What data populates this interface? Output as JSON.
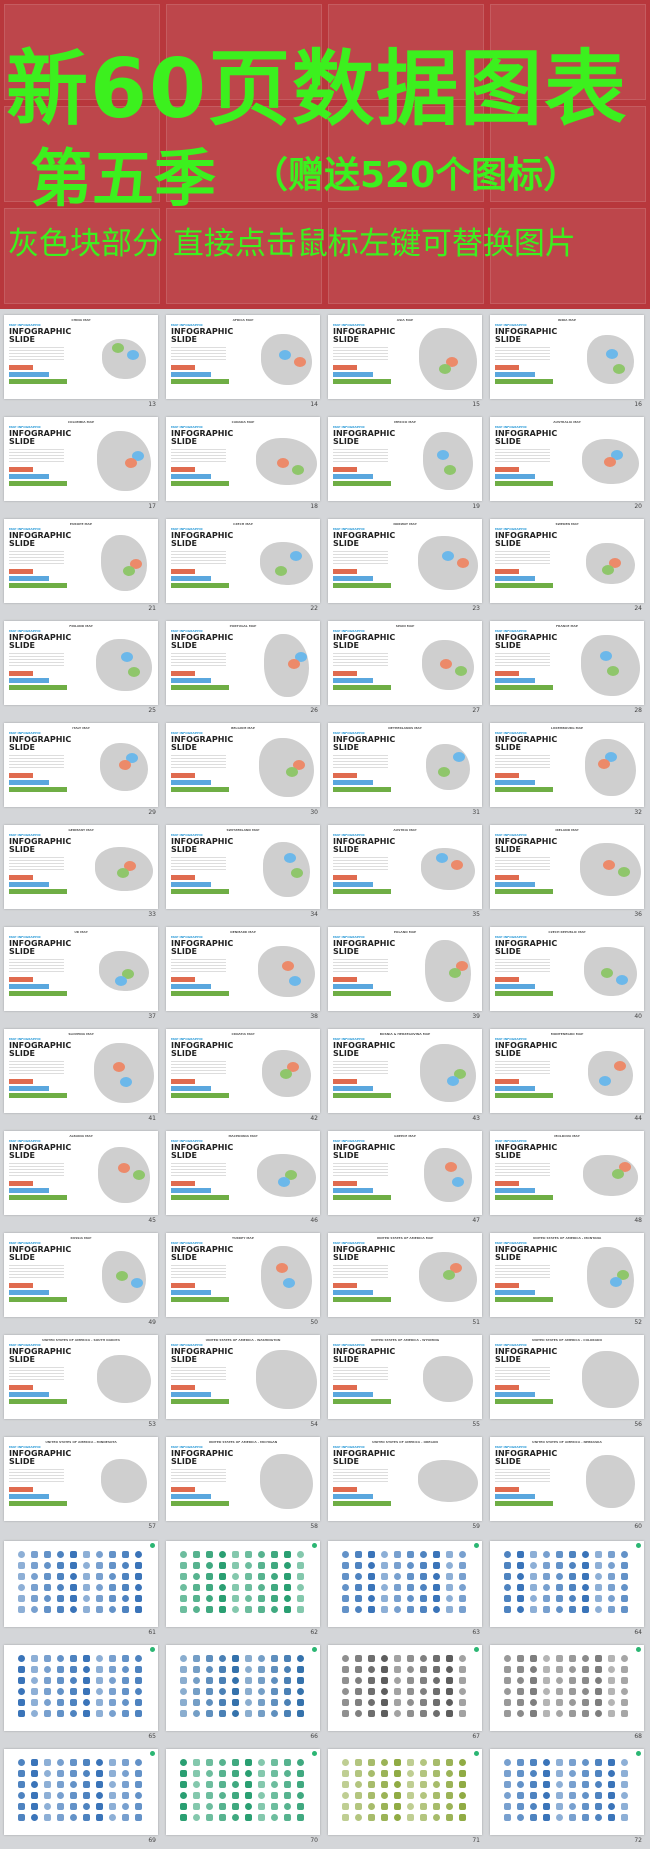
{
  "header": {
    "title": "新60页数据图表",
    "season": "第五季",
    "bonus": "（赠送520个图标）",
    "instruction": "灰色块部分 直接点击鼠标左键可替换图片"
  },
  "slide_label": "MAP INFOGRAPHIC",
  "slide_heading": [
    "INFOGRAPHIC",
    "SLIDE"
  ],
  "map_slides": [
    {
      "title": "CHINA MAP",
      "number": 13
    },
    {
      "title": "AFRICA MAP",
      "number": 14
    },
    {
      "title": "ASIA MAP",
      "number": 15
    },
    {
      "title": "INDIA MAP",
      "number": 16
    },
    {
      "title": "COLOMBIA MAP",
      "number": 17
    },
    {
      "title": "CANADA MAP",
      "number": 18
    },
    {
      "title": "MEXICO MAP",
      "number": 19
    },
    {
      "title": "AUSTRALIA MAP",
      "number": 20
    },
    {
      "title": "EUROPE MAP",
      "number": 21
    },
    {
      "title": "CZECH MAP",
      "number": 22
    },
    {
      "title": "NORWAY MAP",
      "number": 23
    },
    {
      "title": "SWEDEN MAP",
      "number": 24
    },
    {
      "title": "FINLAND MAP",
      "number": 25
    },
    {
      "title": "PORTUGAL MAP",
      "number": 26
    },
    {
      "title": "SPAIN MAP",
      "number": 27
    },
    {
      "title": "FRANCE MAP",
      "number": 28
    },
    {
      "title": "ITALY MAP",
      "number": 29
    },
    {
      "title": "BELGIUM MAP",
      "number": 30
    },
    {
      "title": "NETHERLANDS MAP",
      "number": 31
    },
    {
      "title": "LUXEMBOURG MAP",
      "number": 32
    },
    {
      "title": "GERMANY MAP",
      "number": 33
    },
    {
      "title": "SWITZERLAND MAP",
      "number": 34
    },
    {
      "title": "AUSTRIA MAP",
      "number": 35
    },
    {
      "title": "IRELAND MAP",
      "number": 36
    },
    {
      "title": "UK MAP",
      "number": 37
    },
    {
      "title": "DENMARK MAP",
      "number": 38
    },
    {
      "title": "POLAND MAP",
      "number": 39
    },
    {
      "title": "CZECH REPUBLIC MAP",
      "number": 40
    },
    {
      "title": "SLOVENIA MAP",
      "number": 41
    },
    {
      "title": "CROATIA MAP",
      "number": 42
    },
    {
      "title": "BOSNIA & HERZEGOVINA MAP",
      "number": 43
    },
    {
      "title": "MONTENEGRO MAP",
      "number": 44
    },
    {
      "title": "ALBANIA MAP",
      "number": 45
    },
    {
      "title": "MACEDONIA MAP",
      "number": 46
    },
    {
      "title": "GREECE MAP",
      "number": 47
    },
    {
      "title": "MOLDOVA MAP",
      "number": 48
    },
    {
      "title": "RUSSIA MAP",
      "number": 49
    },
    {
      "title": "TURKEY MAP",
      "number": 50
    },
    {
      "title": "UNITED STATES OF AMERICA MAP",
      "number": 51
    },
    {
      "title": "UNITED STATES OF AMERICA - MONTANA",
      "number": 52
    },
    {
      "title": "UNITED STATES OF AMERICA - SOUTH DAKOTA",
      "number": 53
    },
    {
      "title": "UNITED STATES OF AMERICA - WASHINGTON",
      "number": 54
    },
    {
      "title": "UNITED STATES OF AMERICA - WYOMING",
      "number": 55
    },
    {
      "title": "UNITED STATES OF AMERICA - COLORADO",
      "number": 56
    },
    {
      "title": "UNITED STATES OF AMERICA - MINNESOTA",
      "number": 57
    },
    {
      "title": "UNITED STATES OF AMERICA - MICHIGAN",
      "number": 58
    },
    {
      "title": "UNITED STATES OF AMERICA - OREGON",
      "number": 59
    },
    {
      "title": "UNITED STATES OF AMERICA - NEBRASKA",
      "number": 60
    }
  ],
  "icon_slides": [
    {
      "number": 61,
      "color": "#2f6db5"
    },
    {
      "number": 62,
      "color": "#1f9a6a"
    },
    {
      "number": 63,
      "color": "#2f6db5"
    },
    {
      "number": 64,
      "color": "#2f6db5"
    },
    {
      "number": 65,
      "color": "#2f6db5"
    },
    {
      "number": 66,
      "color": "#2a6aa8"
    },
    {
      "number": 67,
      "color": "#555555"
    },
    {
      "number": 68,
      "color": "#777777"
    },
    {
      "number": 69,
      "color": "#2f6db5"
    },
    {
      "number": 70,
      "color": "#1f9a6a"
    },
    {
      "number": 71,
      "color": "#8aa63a"
    },
    {
      "number": 72,
      "color": "#2f6db5"
    }
  ]
}
